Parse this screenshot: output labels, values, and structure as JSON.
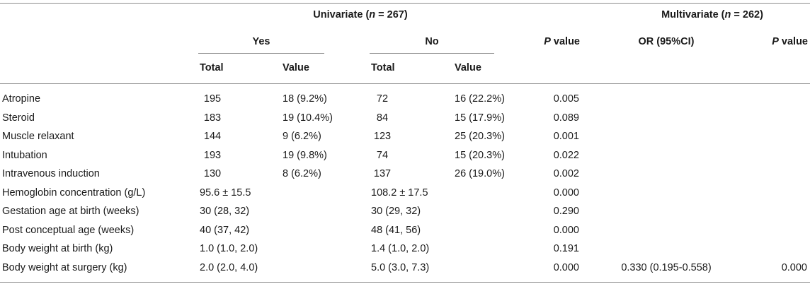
{
  "header": {
    "univariate": {
      "label": "Univariate (",
      "n": "n",
      "rest": " = 267)"
    },
    "multivariate": {
      "label": "Multivariate (",
      "n": "n",
      "rest": " = 262)"
    },
    "yes": "Yes",
    "no": "No",
    "p_value": {
      "p": "P",
      "rest": " value"
    },
    "or_ci": "OR (95%CI)",
    "total": "Total",
    "value": "Value"
  },
  "rows": [
    {
      "label": "Atropine",
      "yes_total": "195",
      "yes_value": "18 (9.2%)",
      "no_total": "72",
      "no_value": "16 (22.2%)",
      "p": "0.005",
      "or": "",
      "mp": ""
    },
    {
      "label": "Steroid",
      "yes_total": "183",
      "yes_value": "19 (10.4%)",
      "no_total": "84",
      "no_value": "15 (17.9%)",
      "p": "0.089",
      "or": "",
      "mp": ""
    },
    {
      "label": "Muscle relaxant",
      "yes_total": "144",
      "yes_value": "9 (6.2%)",
      "no_total": "123",
      "no_value": "25 (20.3%)",
      "p": "0.001",
      "or": "",
      "mp": ""
    },
    {
      "label": "Intubation",
      "yes_total": "193",
      "yes_value": "19 (9.8%)",
      "no_total": "74",
      "no_value": "15 (20.3%)",
      "p": "0.022",
      "or": "",
      "mp": ""
    },
    {
      "label": "Intravenous induction",
      "yes_total": "130",
      "yes_value": "8 (6.2%)",
      "no_total": "137",
      "no_value": "26 (19.0%)",
      "p": "0.002",
      "or": "",
      "mp": ""
    },
    {
      "label": "Hemoglobin concentration (g/L)",
      "yes_total": "95.6 ± 15.5",
      "yes_value": "",
      "no_total": "108.2 ± 17.5",
      "no_value": "",
      "p": "0.000",
      "or": "",
      "mp": ""
    },
    {
      "label": "Gestation age at birth (weeks)",
      "yes_total": "30 (28, 32)",
      "yes_value": "",
      "no_total": "30 (29, 32)",
      "no_value": "",
      "p": "0.290",
      "or": "",
      "mp": ""
    },
    {
      "label": "Post conceptual age (weeks)",
      "yes_total": "40 (37, 42)",
      "yes_value": "",
      "no_total": "48 (41, 56)",
      "no_value": "",
      "p": "0.000",
      "or": "",
      "mp": ""
    },
    {
      "label": "Body weight at birth (kg)",
      "yes_total": "1.0 (1.0, 2.0)",
      "yes_value": "",
      "no_total": "1.4 (1.0, 2.0)",
      "no_value": "",
      "p": "0.191",
      "or": "",
      "mp": ""
    },
    {
      "label": "Body weight at surgery (kg)",
      "yes_total": "2.0 (2.0, 4.0)",
      "yes_value": "",
      "no_total": "5.0 (3.0, 7.3)",
      "no_value": "",
      "p": "0.000",
      "or": "0.330 (0.195-0.558)",
      "mp": "0.000"
    }
  ]
}
